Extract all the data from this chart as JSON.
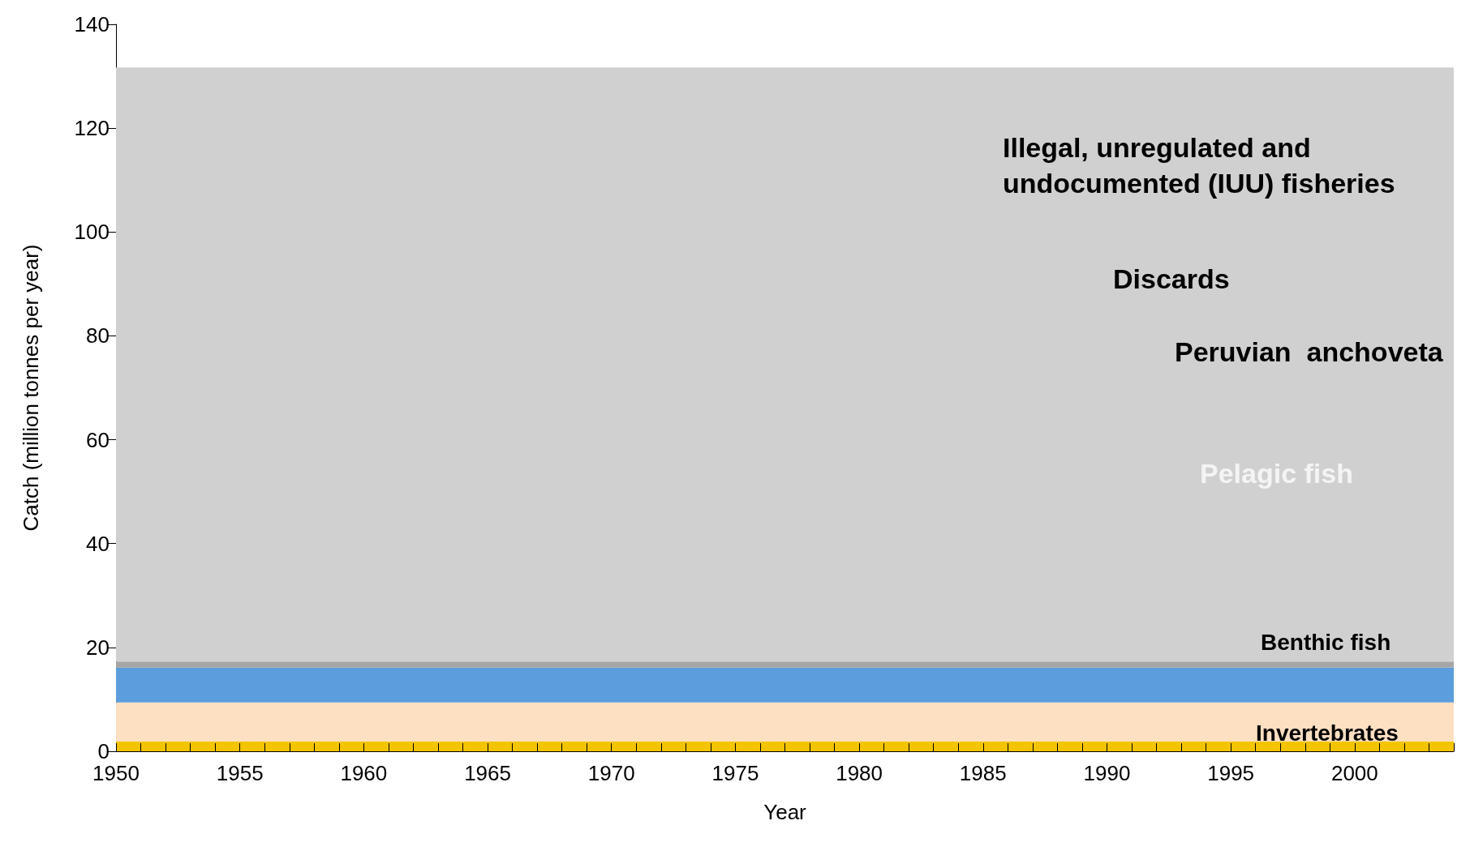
{
  "chart_data": {
    "type": "area",
    "stacked": true,
    "xlabel": "Year",
    "ylabel": "Catch (million tonnes per year)",
    "xlim": [
      1950,
      2004
    ],
    "ylim": [
      0,
      140
    ],
    "yticks": [
      0,
      20,
      40,
      60,
      80,
      100,
      120,
      140
    ],
    "xticks": [
      1950,
      {
        "value": 1951,
        "label": null
      },
      {
        "value": 1952,
        "label": null
      },
      {
        "value": 1953,
        "label": null
      },
      {
        "value": 1954,
        "label": null
      },
      1955,
      {
        "value": 1956,
        "label": null
      },
      {
        "value": 1957,
        "label": null
      },
      {
        "value": 1958,
        "label": null
      },
      {
        "value": 1959,
        "label": null
      },
      1960,
      {
        "value": 1961,
        "label": null
      },
      {
        "value": 1962,
        "label": null
      },
      {
        "value": 1963,
        "label": null
      },
      {
        "value": 1964,
        "label": null
      },
      1965,
      {
        "value": 1966,
        "label": null
      },
      {
        "value": 1967,
        "label": null
      },
      {
        "value": 1968,
        "label": null
      },
      {
        "value": 1969,
        "label": null
      },
      1970,
      {
        "value": 1971,
        "label": null
      },
      {
        "value": 1972,
        "label": null
      },
      {
        "value": 1973,
        "label": null
      },
      {
        "value": 1974,
        "label": null
      },
      1975,
      {
        "value": 1976,
        "label": null
      },
      {
        "value": 1977,
        "label": null
      },
      {
        "value": 1978,
        "label": null
      },
      {
        "value": 1979,
        "label": null
      },
      1980,
      {
        "value": 1981,
        "label": null
      },
      {
        "value": 1982,
        "label": null
      },
      {
        "value": 1983,
        "label": null
      },
      {
        "value": 1984,
        "label": null
      },
      1985,
      {
        "value": 1986,
        "label": null
      },
      {
        "value": 1987,
        "label": null
      },
      {
        "value": 1988,
        "label": null
      },
      {
        "value": 1989,
        "label": null
      },
      1990,
      {
        "value": 1991,
        "label": null
      },
      {
        "value": 1992,
        "label": null
      },
      {
        "value": 1993,
        "label": null
      },
      {
        "value": 1994,
        "label": null
      },
      1995,
      {
        "value": 1996,
        "label": null
      },
      {
        "value": 1997,
        "label": null
      },
      {
        "value": 1998,
        "label": null
      },
      {
        "value": 1999,
        "label": null
      },
      2000,
      {
        "value": 2001,
        "label": null
      },
      {
        "value": 2002,
        "label": null
      },
      {
        "value": 2003,
        "label": null
      },
      {
        "value": 2004,
        "label": null
      }
    ],
    "x": [
      1950,
      2004
    ],
    "series": [
      {
        "color": "#f5c400",
        "values": [
          1.9,
          1.9
        ]
      },
      {
        "color": "#fddfc2",
        "values": [
          7.5,
          7.5
        ]
      },
      {
        "color": "#5c9ddd",
        "values": [
          6.7,
          6.7
        ]
      },
      {
        "color": "#a6a6a6",
        "values": [
          1.2,
          1.2
        ]
      },
      {
        "color": "#d0d0d0",
        "values": [
          114.4,
          114.4
        ]
      }
    ],
    "annotations": [
      "Illegal, unregulated and undocumented (IUU) fisheries",
      "Discards",
      "Peruvian  anchoveta",
      "Pelagic fish",
      "Benthic fish",
      "Invertebrates"
    ],
    "grid": false
  }
}
